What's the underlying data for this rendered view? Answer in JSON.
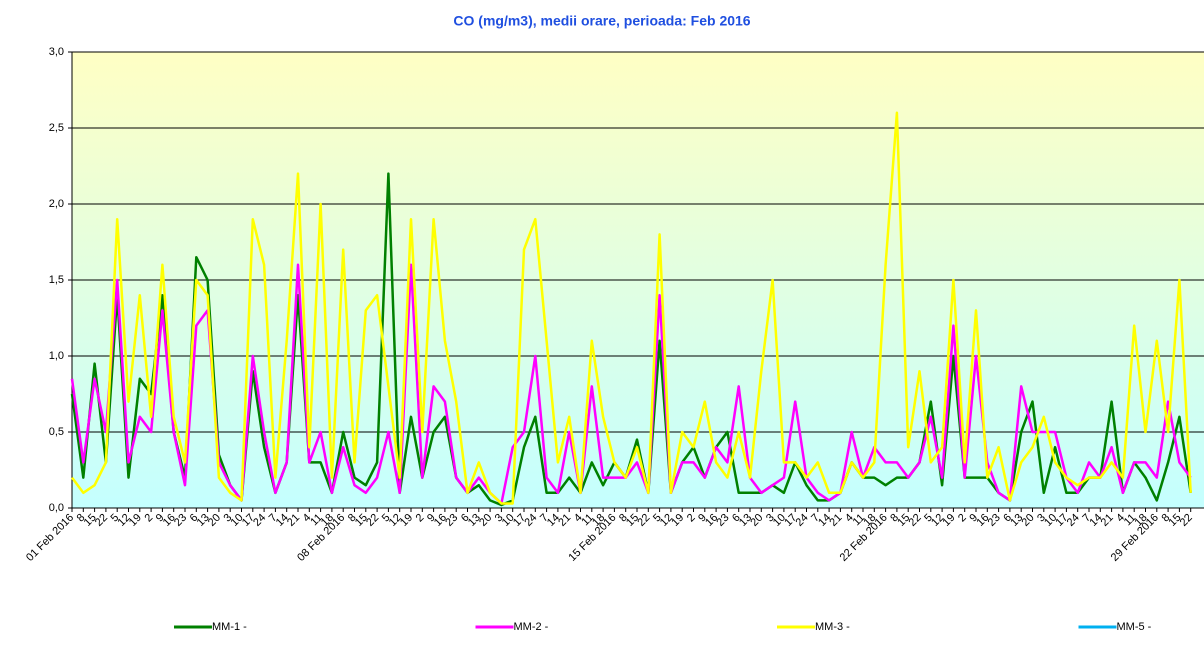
{
  "chart_data": {
    "type": "line",
    "title": "CO (mg/m3), medii orare, perioada:  Feb 2016",
    "categories": [
      "01 Feb 2016",
      "8",
      "15",
      "22",
      "5",
      "12",
      "19",
      "2",
      "9",
      "16",
      "23",
      "6",
      "13",
      "20",
      "3",
      "10",
      "17",
      "24",
      "7",
      "14",
      "21",
      "4",
      "11",
      "18",
      "08 Feb 2016",
      "8",
      "15",
      "22",
      "5",
      "12",
      "19",
      "2",
      "9",
      "16",
      "23",
      "6",
      "13",
      "20",
      "3",
      "10",
      "17",
      "24",
      "7",
      "14",
      "21",
      "4",
      "11",
      "18",
      "15 Feb 2016",
      "8",
      "15",
      "22",
      "5",
      "12",
      "19",
      "2",
      "9",
      "16",
      "23",
      "6",
      "13",
      "20",
      "3",
      "10",
      "17",
      "24",
      "7",
      "14",
      "21",
      "4",
      "11",
      "18",
      "22 Feb 2016",
      "8",
      "15",
      "22",
      "5",
      "12",
      "19",
      "2",
      "9",
      "16",
      "23",
      "6",
      "13",
      "20",
      "3",
      "10",
      "17",
      "24",
      "7",
      "14",
      "21",
      "4",
      "11",
      "18",
      "29 Feb 2016",
      "8",
      "15",
      "22"
    ],
    "series": [
      {
        "name": "MM-1 -",
        "color": "#008000",
        "values": [
          0.75,
          0.2,
          0.95,
          0.3,
          1.4,
          0.2,
          0.85,
          0.75,
          1.4,
          0.5,
          0.2,
          1.65,
          1.5,
          0.35,
          0.15,
          0.05,
          0.9,
          0.4,
          0.1,
          0.3,
          1.4,
          0.3,
          0.3,
          0.1,
          0.5,
          0.2,
          0.15,
          0.3,
          2.2,
          0.1,
          0.6,
          0.2,
          0.5,
          0.6,
          0.2,
          0.1,
          0.15,
          0.05,
          0.02,
          0.05,
          0.4,
          0.6,
          0.1,
          0.1,
          0.2,
          0.1,
          0.3,
          0.15,
          0.3,
          0.2,
          0.45,
          0.1,
          1.1,
          0.1,
          0.3,
          0.4,
          0.2,
          0.4,
          0.5,
          0.1,
          0.1,
          0.1,
          0.15,
          0.1,
          0.3,
          0.15,
          0.05,
          0.05,
          0.1,
          0.3,
          0.2,
          0.2,
          0.15,
          0.2,
          0.2,
          0.3,
          0.7,
          0.15,
          1.0,
          0.2,
          0.2,
          0.2,
          0.1,
          0.05,
          0.5,
          0.7,
          0.1,
          0.4,
          0.1,
          0.1,
          0.2,
          0.2,
          0.7,
          0.1,
          0.3,
          0.2,
          0.05,
          0.3,
          0.6,
          0.1
        ]
      },
      {
        "name": "MM-2 -",
        "color": "#ff00ff",
        "values": [
          0.85,
          0.3,
          0.85,
          0.5,
          1.5,
          0.3,
          0.6,
          0.5,
          1.3,
          0.5,
          0.15,
          1.2,
          1.3,
          0.3,
          0.15,
          0.05,
          1.0,
          0.5,
          0.1,
          0.3,
          1.6,
          0.3,
          0.5,
          0.1,
          0.4,
          0.15,
          0.1,
          0.2,
          0.5,
          0.1,
          1.6,
          0.2,
          0.8,
          0.7,
          0.2,
          0.1,
          0.2,
          0.1,
          0.03,
          0.4,
          0.5,
          1.0,
          0.2,
          0.1,
          0.5,
          0.1,
          0.8,
          0.2,
          0.2,
          0.2,
          0.3,
          0.1,
          1.4,
          0.1,
          0.3,
          0.3,
          0.2,
          0.4,
          0.3,
          0.8,
          0.2,
          0.1,
          0.15,
          0.2,
          0.7,
          0.2,
          0.1,
          0.05,
          0.1,
          0.5,
          0.2,
          0.4,
          0.3,
          0.3,
          0.2,
          0.3,
          0.6,
          0.2,
          1.2,
          0.2,
          1.0,
          0.3,
          0.1,
          0.05,
          0.8,
          0.5,
          0.5,
          0.5,
          0.2,
          0.1,
          0.3,
          0.2,
          0.4,
          0.1,
          0.3,
          0.3,
          0.2,
          0.7,
          0.3,
          0.2
        ]
      },
      {
        "name": "MM-3 -",
        "color": "#ffff00",
        "values": [
          0.2,
          0.1,
          0.15,
          0.3,
          1.9,
          0.7,
          1.4,
          0.6,
          1.6,
          0.6,
          0.3,
          1.5,
          1.4,
          0.2,
          0.1,
          0.05,
          1.9,
          1.6,
          0.2,
          1.1,
          2.2,
          0.4,
          2.0,
          0.2,
          1.7,
          0.3,
          1.3,
          1.4,
          0.8,
          0.2,
          1.9,
          0.5,
          1.9,
          1.1,
          0.7,
          0.1,
          0.3,
          0.1,
          0.03,
          0.03,
          1.7,
          1.9,
          1.1,
          0.3,
          0.6,
          0.1,
          1.1,
          0.6,
          0.3,
          0.2,
          0.4,
          0.1,
          1.8,
          0.1,
          0.5,
          0.4,
          0.7,
          0.3,
          0.2,
          0.5,
          0.2,
          0.9,
          1.5,
          0.3,
          0.3,
          0.2,
          0.3,
          0.1,
          0.1,
          0.3,
          0.2,
          0.3,
          1.6,
          2.6,
          0.4,
          0.9,
          0.3,
          0.4,
          1.5,
          0.3,
          1.3,
          0.2,
          0.4,
          0.05,
          0.3,
          0.4,
          0.6,
          0.3,
          0.2,
          0.15,
          0.2,
          0.2,
          0.3,
          0.2,
          1.2,
          0.5,
          1.1,
          0.5,
          1.5,
          0.1
        ]
      },
      {
        "name": "MM-5 -",
        "color": "#00b0f0",
        "values": [
          null,
          null,
          null,
          null,
          null,
          null,
          null,
          null,
          null,
          null,
          null,
          null,
          null,
          null,
          null,
          null,
          null,
          null,
          null,
          null,
          null,
          null,
          null,
          null,
          null,
          null,
          null,
          null,
          null,
          null,
          null,
          null,
          null,
          null,
          null,
          null,
          null,
          null,
          null,
          null,
          null,
          null,
          null,
          null,
          null,
          null,
          null,
          null,
          null,
          null,
          null,
          null,
          null,
          null,
          null,
          null,
          null,
          null,
          null,
          null,
          null,
          null,
          null,
          null,
          null,
          null,
          null,
          null,
          null,
          null,
          null,
          null,
          null,
          null,
          null,
          null,
          null,
          null,
          null,
          null,
          null,
          null,
          null,
          null,
          null,
          null,
          null,
          null,
          null,
          null,
          null,
          null,
          null,
          null,
          null,
          null,
          null,
          null,
          null,
          null
        ]
      }
    ],
    "ylim": [
      0,
      3
    ],
    "yticks": [
      {
        "value": 0,
        "label": "0,0"
      },
      {
        "value": 0.5,
        "label": "0,5"
      },
      {
        "value": 1,
        "label": "1,0"
      },
      {
        "value": 1.5,
        "label": "1,5"
      },
      {
        "value": 2,
        "label": "2,0"
      },
      {
        "value": 2.5,
        "label": "2,5"
      },
      {
        "value": 3,
        "label": "3,0"
      }
    ],
    "grid": true,
    "legend": "bottom"
  }
}
